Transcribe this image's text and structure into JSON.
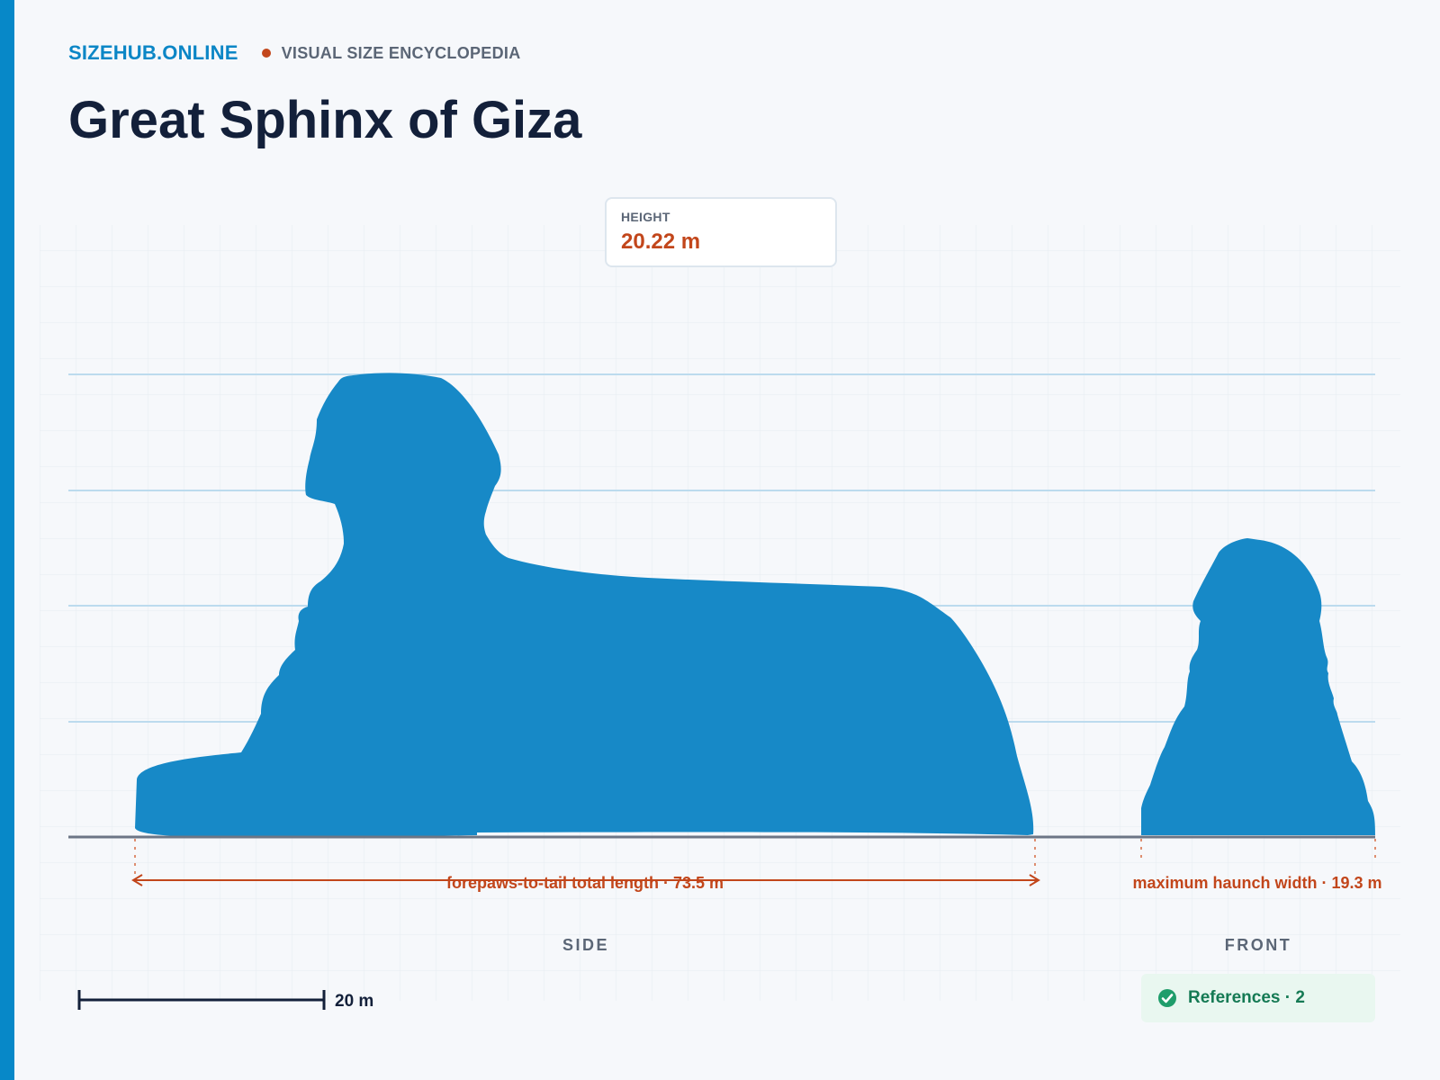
{
  "header": {
    "brand": "SIZEHUB.ONLINE",
    "tagline": "VISUAL SIZE ENCYCLOPEDIA",
    "title": "Great Sphinx of Giza"
  },
  "height_card": {
    "label": "HEIGHT",
    "value": "20.22 m"
  },
  "dimensions": {
    "length_label": "forepaws-to-tail total length · 73.5 m",
    "width_label": "maximum haunch width · 19.3 m"
  },
  "views": {
    "side": "SIDE",
    "front": "FRONT"
  },
  "scale_bar": {
    "label": "20 m"
  },
  "references": {
    "label": "References · 2",
    "icon": "check-circle-icon"
  },
  "colors": {
    "accent": "#0788c8",
    "silhouette": "#1789c7",
    "dimension": "#c2461b",
    "reference": "#157a54"
  }
}
